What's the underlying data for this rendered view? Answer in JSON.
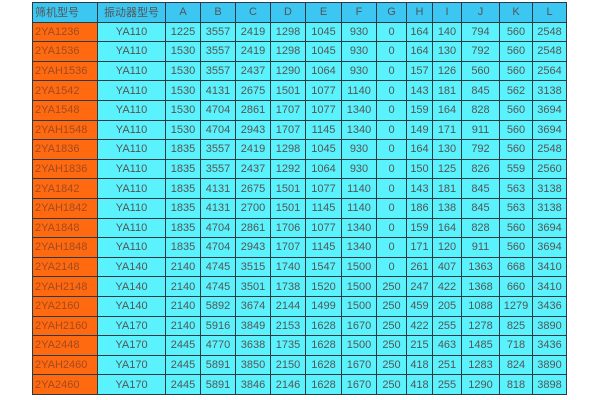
{
  "colors": {
    "header": "#3cc6f2",
    "cell": "#5af2fc",
    "model_cell": "#ff6a10"
  },
  "headers": [
    "筛机型号",
    "振动器型号",
    "A",
    "B",
    "C",
    "D",
    "E",
    "F",
    "G",
    "H",
    "I",
    "J",
    "K",
    "L"
  ],
  "rows": [
    [
      "2YA1236",
      "YA110",
      "1225",
      "3557",
      "2419",
      "1298",
      "1045",
      "930",
      "0",
      "164",
      "140",
      "794",
      "560",
      "2548"
    ],
    [
      "2YA1536",
      "YA110",
      "1530",
      "3557",
      "2419",
      "1298",
      "1045",
      "930",
      "0",
      "164",
      "130",
      "792",
      "560",
      "2548"
    ],
    [
      "2YAH1536",
      "YA110",
      "1530",
      "3557",
      "2437",
      "1290",
      "1064",
      "930",
      "0",
      "157",
      "126",
      "560",
      "560",
      "2564"
    ],
    [
      "2YA1542",
      "YA110",
      "1530",
      "4131",
      "2675",
      "1501",
      "1077",
      "1140",
      "0",
      "143",
      "181",
      "845",
      "562",
      "3138"
    ],
    [
      "2YA1548",
      "YA110",
      "1530",
      "4704",
      "2861",
      "1707",
      "1077",
      "1340",
      "0",
      "159",
      "164",
      "828",
      "560",
      "3694"
    ],
    [
      "2YAH1548",
      "YA110",
      "1530",
      "4704",
      "2943",
      "1707",
      "1145",
      "1340",
      "0",
      "149",
      "171",
      "911",
      "560",
      "3694"
    ],
    [
      "2YA1836",
      "YA110",
      "1835",
      "3557",
      "2419",
      "1298",
      "1045",
      "930",
      "0",
      "164",
      "130",
      "792",
      "560",
      "2548"
    ],
    [
      "2YAH1836",
      "YA110",
      "1835",
      "3557",
      "2437",
      "1292",
      "1064",
      "930",
      "0",
      "150",
      "125",
      "826",
      "559",
      "2560"
    ],
    [
      "2YA1842",
      "YA110",
      "1835",
      "4131",
      "2675",
      "1501",
      "1077",
      "1140",
      "0",
      "143",
      "181",
      "845",
      "563",
      "3138"
    ],
    [
      "2YAH1842",
      "YA110",
      "1835",
      "4131",
      "2700",
      "1501",
      "1145",
      "1140",
      "0",
      "186",
      "138",
      "845",
      "563",
      "3138"
    ],
    [
      "2YA1848",
      "YA110",
      "1835",
      "4704",
      "2861",
      "1706",
      "1077",
      "1340",
      "0",
      "159",
      "164",
      "828",
      "560",
      "3694"
    ],
    [
      "2YAH1848",
      "YA110",
      "1835",
      "4704",
      "2943",
      "1707",
      "1145",
      "1340",
      "0",
      "171",
      "120",
      "911",
      "560",
      "3694"
    ],
    [
      "2YA2148",
      "YA140",
      "2140",
      "4745",
      "3515",
      "1740",
      "1547",
      "1500",
      "0",
      "261",
      "407",
      "1363",
      "668",
      "3410"
    ],
    [
      "2YAH2148",
      "YA140",
      "2140",
      "4745",
      "3501",
      "1738",
      "1520",
      "1500",
      "250",
      "247",
      "422",
      "1368",
      "660",
      "3410"
    ],
    [
      "2YA2160",
      "YA140",
      "2140",
      "5892",
      "3674",
      "2144",
      "1499",
      "1500",
      "250",
      "459",
      "205",
      "1088",
      "1279",
      "3436"
    ],
    [
      "2YAH2160",
      "YA170",
      "2140",
      "5916",
      "3849",
      "2153",
      "1628",
      "1670",
      "250",
      "422",
      "255",
      "1278",
      "825",
      "3890"
    ],
    [
      "2YA2448",
      "YA170",
      "2445",
      "4770",
      "3638",
      "1735",
      "1628",
      "1500",
      "250",
      "215",
      "463",
      "1485",
      "718",
      "3436"
    ],
    [
      "2YAH2460",
      "YA170",
      "2445",
      "5891",
      "3850",
      "2150",
      "1628",
      "1670",
      "250",
      "418",
      "251",
      "1283",
      "824",
      "3890"
    ],
    [
      "2YA2460",
      "YA170",
      "2445",
      "5891",
      "3846",
      "2146",
      "1628",
      "1670",
      "250",
      "418",
      "255",
      "1290",
      "818",
      "3898"
    ]
  ]
}
